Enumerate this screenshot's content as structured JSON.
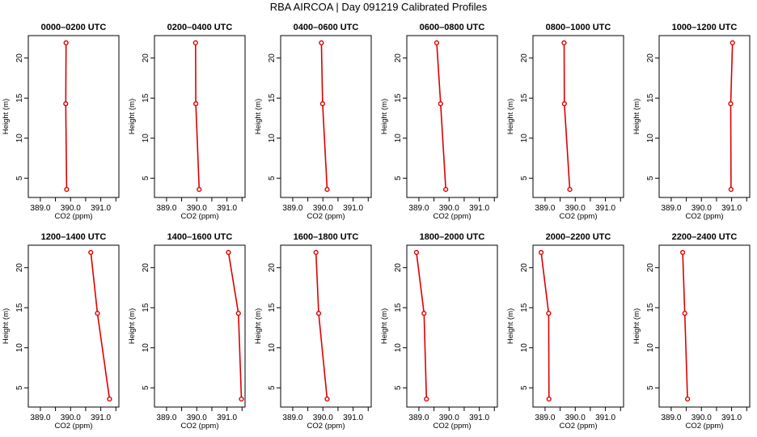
{
  "title": "RBA AIRCOA  |  Day 091219  Calibrated Profiles",
  "colors": {
    "line": "#dd0000",
    "axis": "#000000",
    "background": "#ffffff"
  },
  "chart_data": [
    {
      "type": "line",
      "title": "0000–0200 UTC",
      "xlabel": "CO2 (ppm)",
      "ylabel": "Height (m)",
      "xlim": [
        388.6,
        391.6
      ],
      "ylim": [
        2.6,
        22.8
      ],
      "xticks": [
        389,
        389.5,
        390,
        390.5,
        391,
        391.5
      ],
      "xticklabels": [
        "389.0",
        "",
        "390.0",
        "",
        "391.0",
        ""
      ],
      "yticks": [
        5,
        10,
        15,
        20
      ],
      "grid": false,
      "series": [
        {
          "points": [
            {
              "x": 389.87,
              "y": 3.6
            },
            {
              "x": 389.84,
              "y": 14.3
            },
            {
              "x": 389.85,
              "y": 21.9
            }
          ]
        }
      ]
    },
    {
      "type": "line",
      "title": "0200–0400 UTC",
      "xlabel": "CO2 (ppm)",
      "ylabel": "Height (m)",
      "xlim": [
        388.6,
        391.6
      ],
      "ylim": [
        2.6,
        22.8
      ],
      "xticks": [
        389,
        389.5,
        390,
        390.5,
        391,
        391.5
      ],
      "xticklabels": [
        "389.0",
        "",
        "390.0",
        "",
        "391.0",
        ""
      ],
      "yticks": [
        5,
        10,
        15,
        20
      ],
      "grid": false,
      "series": [
        {
          "points": [
            {
              "x": 390.08,
              "y": 3.6
            },
            {
              "x": 389.97,
              "y": 14.3
            },
            {
              "x": 389.96,
              "y": 21.9
            }
          ]
        }
      ]
    },
    {
      "type": "line",
      "title": "0400–0600 UTC",
      "xlabel": "CO2 (ppm)",
      "ylabel": "Height (m)",
      "xlim": [
        388.6,
        391.6
      ],
      "ylim": [
        2.6,
        22.8
      ],
      "xticks": [
        389,
        389.5,
        390,
        390.5,
        391,
        391.5
      ],
      "xticklabels": [
        "389.0",
        "",
        "390.0",
        "",
        "391.0",
        ""
      ],
      "yticks": [
        5,
        10,
        15,
        20
      ],
      "grid": false,
      "series": [
        {
          "points": [
            {
              "x": 390.14,
              "y": 3.6
            },
            {
              "x": 389.99,
              "y": 14.3
            },
            {
              "x": 389.95,
              "y": 21.9
            }
          ]
        }
      ]
    },
    {
      "type": "line",
      "title": "0600–0800 UTC",
      "xlabel": "CO2 (ppm)",
      "ylabel": "Height (m)",
      "xlim": [
        388.6,
        391.6
      ],
      "ylim": [
        2.6,
        22.8
      ],
      "xticks": [
        389,
        389.5,
        390,
        390.5,
        391,
        391.5
      ],
      "xticklabels": [
        "389.0",
        "",
        "390.0",
        "",
        "391.0",
        ""
      ],
      "yticks": [
        5,
        10,
        15,
        20
      ],
      "grid": false,
      "series": [
        {
          "points": [
            {
              "x": 389.89,
              "y": 3.6
            },
            {
              "x": 389.72,
              "y": 14.3
            },
            {
              "x": 389.59,
              "y": 21.9
            }
          ]
        }
      ]
    },
    {
      "type": "line",
      "title": "0800–1000 UTC",
      "xlabel": "CO2 (ppm)",
      "ylabel": "Height (m)",
      "xlim": [
        388.6,
        391.6
      ],
      "ylim": [
        2.6,
        22.8
      ],
      "xticks": [
        389,
        389.5,
        390,
        390.5,
        391,
        391.5
      ],
      "xticklabels": [
        "389.0",
        "",
        "390.0",
        "",
        "391.0",
        ""
      ],
      "yticks": [
        5,
        10,
        15,
        20
      ],
      "grid": false,
      "series": [
        {
          "points": [
            {
              "x": 389.82,
              "y": 3.6
            },
            {
              "x": 389.64,
              "y": 14.3
            },
            {
              "x": 389.63,
              "y": 21.9
            }
          ]
        }
      ]
    },
    {
      "type": "line",
      "title": "1000–1200 UTC",
      "xlabel": "CO2 (ppm)",
      "ylabel": "Height (m)",
      "xlim": [
        388.6,
        391.6
      ],
      "ylim": [
        2.6,
        22.8
      ],
      "xticks": [
        389,
        389.5,
        390,
        390.5,
        391,
        391.5
      ],
      "xticklabels": [
        "389.0",
        "",
        "390.0",
        "",
        "391.0",
        ""
      ],
      "yticks": [
        5,
        10,
        15,
        20
      ],
      "grid": false,
      "series": [
        {
          "points": [
            {
              "x": 390.98,
              "y": 3.6
            },
            {
              "x": 390.97,
              "y": 14.3
            },
            {
              "x": 391.03,
              "y": 21.9
            }
          ]
        }
      ]
    },
    {
      "type": "line",
      "title": "1200–1400 UTC",
      "xlabel": "CO2 (ppm)",
      "ylabel": "Height (m)",
      "xlim": [
        388.6,
        391.6
      ],
      "ylim": [
        2.6,
        22.8
      ],
      "xticks": [
        389,
        389.5,
        390,
        390.5,
        391,
        391.5
      ],
      "xticklabels": [
        "389.0",
        "",
        "390.0",
        "",
        "391.0",
        ""
      ],
      "yticks": [
        5,
        10,
        15,
        20
      ],
      "grid": false,
      "series": [
        {
          "points": [
            {
              "x": 391.29,
              "y": 3.6
            },
            {
              "x": 390.89,
              "y": 14.3
            },
            {
              "x": 390.67,
              "y": 21.9
            }
          ]
        }
      ]
    },
    {
      "type": "line",
      "title": "1400–1600 UTC",
      "xlabel": "CO2 (ppm)",
      "ylabel": "Height (m)",
      "xlim": [
        388.6,
        391.6
      ],
      "ylim": [
        2.6,
        22.8
      ],
      "xticks": [
        389,
        389.5,
        390,
        390.5,
        391,
        391.5
      ],
      "xticklabels": [
        "389.0",
        "",
        "390.0",
        "",
        "391.0",
        ""
      ],
      "yticks": [
        5,
        10,
        15,
        20
      ],
      "grid": false,
      "series": [
        {
          "points": [
            {
              "x": 391.48,
              "y": 3.6
            },
            {
              "x": 391.38,
              "y": 14.3
            },
            {
              "x": 391.05,
              "y": 21.9
            }
          ]
        }
      ]
    },
    {
      "type": "line",
      "title": "1600–1800 UTC",
      "xlabel": "CO2 (ppm)",
      "ylabel": "Height (m)",
      "xlim": [
        388.6,
        391.6
      ],
      "ylim": [
        2.6,
        22.8
      ],
      "xticks": [
        389,
        389.5,
        390,
        390.5,
        391,
        391.5
      ],
      "xticklabels": [
        "389.0",
        "",
        "390.0",
        "",
        "391.0",
        ""
      ],
      "yticks": [
        5,
        10,
        15,
        20
      ],
      "grid": false,
      "series": [
        {
          "points": [
            {
              "x": 390.14,
              "y": 3.6
            },
            {
              "x": 389.86,
              "y": 14.3
            },
            {
              "x": 389.77,
              "y": 21.9
            }
          ]
        }
      ]
    },
    {
      "type": "line",
      "title": "1800–2000 UTC",
      "xlabel": "CO2 (ppm)",
      "ylabel": "Height (m)",
      "xlim": [
        388.6,
        391.6
      ],
      "ylim": [
        2.6,
        22.8
      ],
      "xticks": [
        389,
        389.5,
        390,
        390.5,
        391,
        391.5
      ],
      "xticklabels": [
        "389.0",
        "",
        "390.0",
        "",
        "391.0",
        ""
      ],
      "yticks": [
        5,
        10,
        15,
        20
      ],
      "grid": false,
      "series": [
        {
          "points": [
            {
              "x": 389.25,
              "y": 3.6
            },
            {
              "x": 389.17,
              "y": 14.3
            },
            {
              "x": 388.92,
              "y": 21.9
            }
          ]
        }
      ]
    },
    {
      "type": "line",
      "title": "2000–2200 UTC",
      "xlabel": "CO2 (ppm)",
      "ylabel": "Height (m)",
      "xlim": [
        388.6,
        391.6
      ],
      "ylim": [
        2.6,
        22.8
      ],
      "xticks": [
        389,
        389.5,
        390,
        390.5,
        391,
        391.5
      ],
      "xticklabels": [
        "389.0",
        "",
        "390.0",
        "",
        "391.0",
        ""
      ],
      "yticks": [
        5,
        10,
        15,
        20
      ],
      "grid": false,
      "series": [
        {
          "points": [
            {
              "x": 389.13,
              "y": 3.6
            },
            {
              "x": 389.12,
              "y": 14.3
            },
            {
              "x": 388.87,
              "y": 21.9
            }
          ]
        }
      ]
    },
    {
      "type": "line",
      "title": "2200–2400 UTC",
      "xlabel": "CO2 (ppm)",
      "ylabel": "Height (m)",
      "xlim": [
        388.6,
        391.6
      ],
      "ylim": [
        2.6,
        22.8
      ],
      "xticks": [
        389,
        389.5,
        390,
        390.5,
        391,
        391.5
      ],
      "xticklabels": [
        "389.0",
        "",
        "390.0",
        "",
        "391.0",
        ""
      ],
      "yticks": [
        5,
        10,
        15,
        20
      ],
      "grid": false,
      "series": [
        {
          "points": [
            {
              "x": 389.54,
              "y": 3.6
            },
            {
              "x": 389.45,
              "y": 14.3
            },
            {
              "x": 389.38,
              "y": 21.9
            }
          ]
        }
      ]
    }
  ]
}
